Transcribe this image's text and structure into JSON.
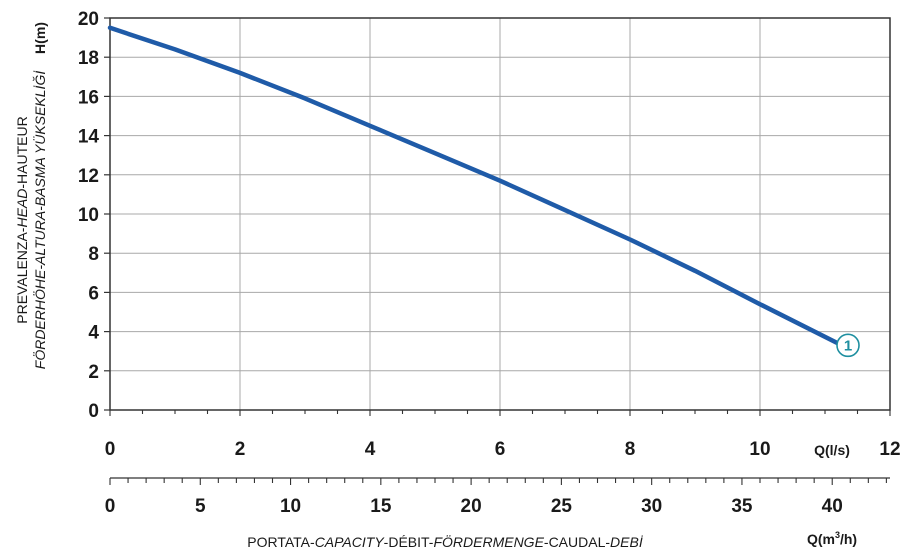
{
  "chart_data": {
    "type": "line",
    "ylabel_line1_parts": [
      {
        "text": "PREVALENZA-",
        "italic": false
      },
      {
        "text": "HEAD",
        "italic": true
      },
      {
        "text": "-HAUTEUR",
        "italic": false
      }
    ],
    "ylabel_line2": "FÖRDERHÖHE-ALTURA-BASMA YÜKSEKLİĞİ",
    "ylabel_unit": "H(m)",
    "xlabel_parts": [
      {
        "text": "PORTATA-",
        "italic": false
      },
      {
        "text": "CAPACITY",
        "italic": true
      },
      {
        "text": "-DÉBIT-",
        "italic": false
      },
      {
        "text": "FÖRDERMENGE",
        "italic": true
      },
      {
        "text": "-CAUDAL-",
        "italic": false
      },
      {
        "text": "DEBİ",
        "italic": true
      }
    ],
    "x_primary_unit": "Q(l/s)",
    "x_secondary_unit_base": "Q(m",
    "x_secondary_unit_sup": "3",
    "x_secondary_unit_tail": "/h)",
    "xlim": [
      0,
      12
    ],
    "ylim": [
      0,
      20
    ],
    "x_ticks": [
      0,
      2,
      4,
      6,
      8,
      10,
      12
    ],
    "y_ticks": [
      0,
      2,
      4,
      6,
      8,
      10,
      12,
      14,
      16,
      18,
      20
    ],
    "x2_ticks": [
      0,
      5,
      10,
      15,
      20,
      25,
      30,
      35,
      40
    ],
    "grid": true,
    "series": [
      {
        "label": "1",
        "color": "#1f5ba8",
        "x": [
          0,
          1,
          2,
          3,
          4,
          5,
          6,
          7,
          8,
          9,
          10,
          11.2
        ],
        "y": [
          19.5,
          18.4,
          17.2,
          15.9,
          14.5,
          13.1,
          11.7,
          10.2,
          8.7,
          7.1,
          5.4,
          3.4
        ]
      }
    ]
  }
}
